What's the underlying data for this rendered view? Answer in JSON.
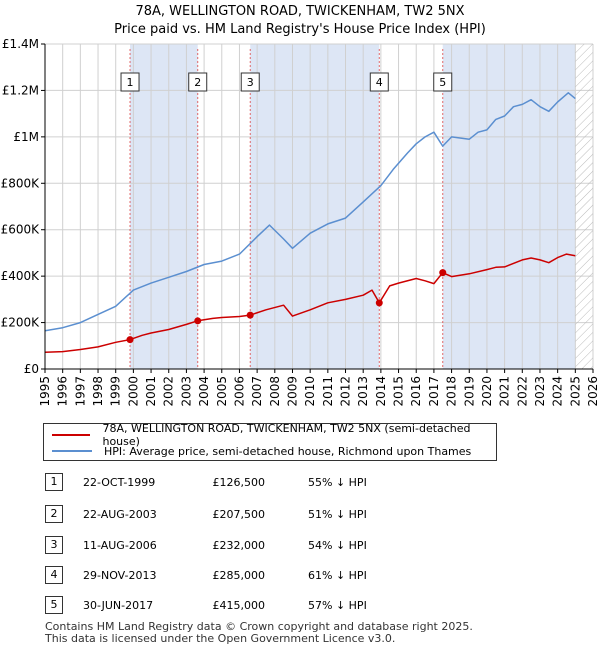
{
  "title": "78A, WELLINGTON ROAD, TWICKENHAM, TW2 5NX",
  "subtitle": "Price paid vs. HM Land Registry's House Price Index (HPI)",
  "colors": {
    "property": "#cc0000",
    "hpi": "#5b8fd0",
    "shade": "#dde6f5",
    "grid": "#d0d0d0"
  },
  "chart_data": {
    "type": "line",
    "title": "Price paid vs. HM Land Registry's House Price Index (HPI)",
    "xlim": [
      1995,
      2026
    ],
    "ylim": [
      0,
      1400000
    ],
    "x_ticks": [
      "1995",
      "1996",
      "1997",
      "1998",
      "1999",
      "2000",
      "2001",
      "2002",
      "2003",
      "2004",
      "2005",
      "2006",
      "2007",
      "2008",
      "2009",
      "2010",
      "2011",
      "2012",
      "2013",
      "2014",
      "2015",
      "2016",
      "2017",
      "2018",
      "2019",
      "2020",
      "2021",
      "2022",
      "2023",
      "2024",
      "2025",
      "2026"
    ],
    "y_ticks": [
      {
        "value": 0,
        "label": "£0"
      },
      {
        "value": 200000,
        "label": "£200K"
      },
      {
        "value": 400000,
        "label": "£400K"
      },
      {
        "value": 600000,
        "label": "£600K"
      },
      {
        "value": 800000,
        "label": "£800K"
      },
      {
        "value": 1000000,
        "label": "£1M"
      },
      {
        "value": 1200000,
        "label": "£1.2M"
      },
      {
        "value": 1400000,
        "label": "£1.4M"
      }
    ],
    "hatched_after": 2025.0,
    "series": [
      {
        "name": "78A, WELLINGTON ROAD, TWICKENHAM, TW2 5NX (semi-detached house)",
        "color": "#cc0000",
        "x": [
          1995.0,
          1996.0,
          1997.0,
          1998.0,
          1999.0,
          1999.81,
          2000.5,
          2001.0,
          2002.0,
          2003.0,
          2003.64,
          2004.5,
          2005.0,
          2006.0,
          2006.61,
          2007.5,
          2008.5,
          2009.0,
          2010.0,
          2011.0,
          2012.0,
          2013.0,
          2013.5,
          2013.91,
          2014.5,
          2015.0,
          2016.0,
          2016.5,
          2017.0,
          2017.5,
          2018.0,
          2019.0,
          2020.0,
          2020.5,
          2021.0,
          2022.0,
          2022.5,
          2023.0,
          2023.5,
          2024.0,
          2024.5,
          2025.0
        ],
        "y": [
          72000,
          75000,
          84000,
          95000,
          115000,
          126500,
          145000,
          155000,
          170000,
          192000,
          207500,
          218000,
          222000,
          226000,
          232000,
          255000,
          275000,
          228000,
          255000,
          285000,
          300000,
          318000,
          340000,
          285000,
          358000,
          370000,
          390000,
          380000,
          368000,
          415000,
          398000,
          410000,
          428000,
          438000,
          440000,
          470000,
          478000,
          470000,
          458000,
          480000,
          495000,
          488000
        ]
      },
      {
        "name": "HPI: Average price, semi-detached house, Richmond upon Thames",
        "color": "#5b8fd0",
        "x": [
          1995.0,
          1996.0,
          1997.0,
          1998.0,
          1999.0,
          2000.0,
          2001.0,
          2002.0,
          2003.0,
          2004.0,
          2005.0,
          2006.0,
          2007.0,
          2007.7,
          2008.5,
          2009.0,
          2010.0,
          2011.0,
          2012.0,
          2013.0,
          2014.0,
          2014.7,
          2015.5,
          2016.0,
          2016.5,
          2017.0,
          2017.5,
          2018.0,
          2019.0,
          2019.5,
          2020.0,
          2020.5,
          2021.0,
          2021.5,
          2022.0,
          2022.5,
          2023.0,
          2023.5,
          2024.0,
          2024.3,
          2024.6,
          2025.0
        ],
        "y": [
          165000,
          178000,
          200000,
          235000,
          270000,
          340000,
          370000,
          395000,
          420000,
          450000,
          465000,
          495000,
          570000,
          620000,
          560000,
          520000,
          585000,
          625000,
          650000,
          720000,
          790000,
          860000,
          930000,
          970000,
          1000000,
          1020000,
          960000,
          1000000,
          990000,
          1020000,
          1030000,
          1075000,
          1090000,
          1130000,
          1140000,
          1160000,
          1130000,
          1110000,
          1150000,
          1170000,
          1190000,
          1165000
        ]
      }
    ],
    "sales": [
      {
        "id": "1",
        "x": 1999.81,
        "price": 126500
      },
      {
        "id": "2",
        "x": 2003.64,
        "price": 207500
      },
      {
        "id": "3",
        "x": 2006.61,
        "price": 232000
      },
      {
        "id": "4",
        "x": 2013.91,
        "price": 285000
      },
      {
        "id": "5",
        "x": 2017.5,
        "price": 415000
      }
    ]
  },
  "legend": {
    "property": "78A, WELLINGTON ROAD, TWICKENHAM, TW2 5NX (semi-detached house)",
    "hpi": "HPI: Average price, semi-detached house, Richmond upon Thames"
  },
  "transactions": [
    {
      "num": "1",
      "date": "22-OCT-1999",
      "price": "£126,500",
      "hpi": "55% ↓ HPI"
    },
    {
      "num": "2",
      "date": "22-AUG-2003",
      "price": "£207,500",
      "hpi": "51% ↓ HPI"
    },
    {
      "num": "3",
      "date": "11-AUG-2006",
      "price": "£232,000",
      "hpi": "54% ↓ HPI"
    },
    {
      "num": "4",
      "date": "29-NOV-2013",
      "price": "£285,000",
      "hpi": "61% ↓ HPI"
    },
    {
      "num": "5",
      "date": "30-JUN-2017",
      "price": "£415,000",
      "hpi": "57% ↓ HPI"
    }
  ],
  "footer": {
    "line1": "Contains HM Land Registry data © Crown copyright and database right 2025.",
    "line2": "This data is licensed under the Open Government Licence v3.0."
  }
}
